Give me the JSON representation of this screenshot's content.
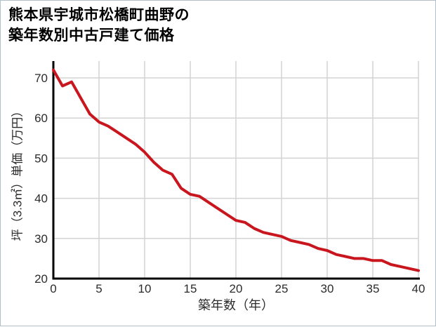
{
  "header": {
    "title_line1": "熊本県宇城市松橋町曲野の",
    "title_line2": "築年数別中古戸建て価格"
  },
  "chart_data": {
    "type": "line",
    "title": "熊本県宇城市松橋町曲野の築年数別中古戸建て価格",
    "xlabel": "築年数（年）",
    "ylabel": "坪（3.3㎡）単価（万円）",
    "x": [
      0,
      1,
      2,
      3,
      4,
      5,
      6,
      7,
      8,
      9,
      10,
      11,
      12,
      13,
      14,
      15,
      16,
      17,
      18,
      19,
      20,
      21,
      22,
      23,
      24,
      25,
      26,
      27,
      28,
      29,
      30,
      31,
      32,
      33,
      34,
      35,
      36,
      37,
      38,
      39,
      40
    ],
    "values": [
      72,
      68,
      69,
      65,
      61,
      59,
      58,
      56.5,
      55,
      53.5,
      51.5,
      49,
      47,
      46,
      42.5,
      41,
      40.5,
      39,
      37.5,
      36,
      34.5,
      34,
      32.5,
      31.5,
      31,
      30.5,
      29.5,
      29,
      28.5,
      27.5,
      27,
      26,
      25.5,
      25,
      25,
      24.5,
      24.5,
      23.5,
      23,
      22.5,
      22
    ],
    "xlim": [
      0,
      40
    ],
    "ylim": [
      20,
      74.2
    ],
    "xticks": [
      0,
      5,
      10,
      15,
      20,
      25,
      30,
      35,
      40
    ],
    "yticks": [
      20,
      30,
      40,
      50,
      60,
      70
    ],
    "grid": true,
    "legend_position": "none",
    "line_color": "#c9161e",
    "axis_color": "#000000",
    "grid_color": "#d3d3d3",
    "tick_label_color": "#2b2b2b"
  },
  "colors": {
    "page_border": "#b3bfc9",
    "background": "#ffffff"
  }
}
